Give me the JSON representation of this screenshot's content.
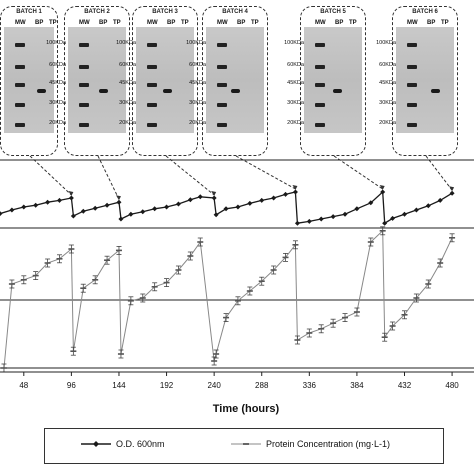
{
  "batches": [
    {
      "title": "BATCH 1",
      "lanes": [
        "MW",
        "BP",
        "TP"
      ],
      "mw_ticks": [
        "100KDa",
        "60KDa",
        "45KDa",
        "30KDa",
        "20KDa"
      ]
    },
    {
      "title": "BATCH 2",
      "lanes": [
        "MW",
        "BP",
        "TP"
      ],
      "mw_ticks": [
        "100KDa",
        "60KDa",
        "45KDa",
        "30KDa",
        "20KDa"
      ]
    },
    {
      "title": "BATCH 3",
      "lanes": [
        "MW",
        "BP",
        "TP"
      ],
      "mw_ticks": [
        "100KDa",
        "60KDa",
        "45KDa",
        "30KDa",
        "20KDa"
      ]
    },
    {
      "title": "BATCH 4",
      "lanes": [
        "MW",
        "BP",
        "TP"
      ],
      "mw_ticks": [
        "100KDa",
        "60KDa",
        "45KDa",
        "30KDa",
        "20KDa"
      ]
    },
    {
      "title": "BATCH 5",
      "lanes": [
        "MW",
        "BP",
        "TP"
      ],
      "mw_ticks": [
        "100KDa",
        "60KDa",
        "45KDa",
        "30KDa",
        "20KDa"
      ]
    },
    {
      "title": "BATCH 6",
      "lanes": [
        "MW",
        "BP",
        "TP"
      ],
      "mw_ticks": [
        "100KDa",
        "60KDa",
        "45KDa",
        "30KDa",
        "20KDa"
      ]
    }
  ],
  "chart_data": {
    "type": "line",
    "xlabel": "Time (hours)",
    "x_ticks": [
      48,
      96,
      144,
      192,
      240,
      288,
      336,
      384,
      432,
      480
    ],
    "xlim": [
      24,
      490
    ],
    "grid": "horizontal lines only",
    "series": [
      {
        "name": "O.D. 600nm",
        "color": "#1a1a1a",
        "marker": "diamond",
        "panel": "top",
        "x": [
          24,
          36,
          48,
          60,
          72,
          84,
          96,
          98,
          108,
          120,
          132,
          144,
          146,
          156,
          168,
          180,
          192,
          204,
          216,
          226,
          240,
          242,
          252,
          264,
          276,
          288,
          300,
          312,
          322,
          324,
          336,
          348,
          360,
          372,
          384,
          398,
          410,
          412,
          420,
          432,
          444,
          456,
          468,
          480
        ],
        "y": [
          0.44,
          0.5,
          0.55,
          0.58,
          0.63,
          0.66,
          0.7,
          0.4,
          0.48,
          0.53,
          0.58,
          0.63,
          0.35,
          0.43,
          0.47,
          0.52,
          0.55,
          0.6,
          0.67,
          0.72,
          0.7,
          0.42,
          0.52,
          0.55,
          0.61,
          0.66,
          0.7,
          0.76,
          0.8,
          0.28,
          0.31,
          0.35,
          0.39,
          0.43,
          0.52,
          0.62,
          0.8,
          0.28,
          0.36,
          0.43,
          0.5,
          0.57,
          0.66,
          0.78
        ]
      },
      {
        "name": "Protein Concentration (mg·L-1)",
        "color": "#888888",
        "marker": "dash",
        "panel": "bottom",
        "x": [
          28,
          36,
          48,
          60,
          72,
          84,
          96,
          98,
          108,
          120,
          132,
          144,
          146,
          156,
          168,
          180,
          192,
          204,
          216,
          226,
          240,
          242,
          252,
          264,
          276,
          288,
          300,
          312,
          322,
          324,
          336,
          348,
          360,
          372,
          384,
          398,
          410,
          412,
          420,
          432,
          444,
          456,
          468,
          480
        ],
        "y": [
          0.0,
          0.6,
          0.63,
          0.66,
          0.75,
          0.78,
          0.85,
          0.12,
          0.57,
          0.63,
          0.77,
          0.84,
          0.1,
          0.48,
          0.5,
          0.58,
          0.61,
          0.7,
          0.8,
          0.9,
          0.05,
          0.1,
          0.36,
          0.48,
          0.55,
          0.62,
          0.7,
          0.79,
          0.88,
          0.2,
          0.25,
          0.28,
          0.32,
          0.36,
          0.4,
          0.9,
          0.98,
          0.22,
          0.3,
          0.38,
          0.5,
          0.6,
          0.75,
          0.93
        ]
      }
    ]
  },
  "legend": {
    "items": [
      "O.D. 600nm",
      "Protein Concentration (mg·L-1)"
    ]
  }
}
